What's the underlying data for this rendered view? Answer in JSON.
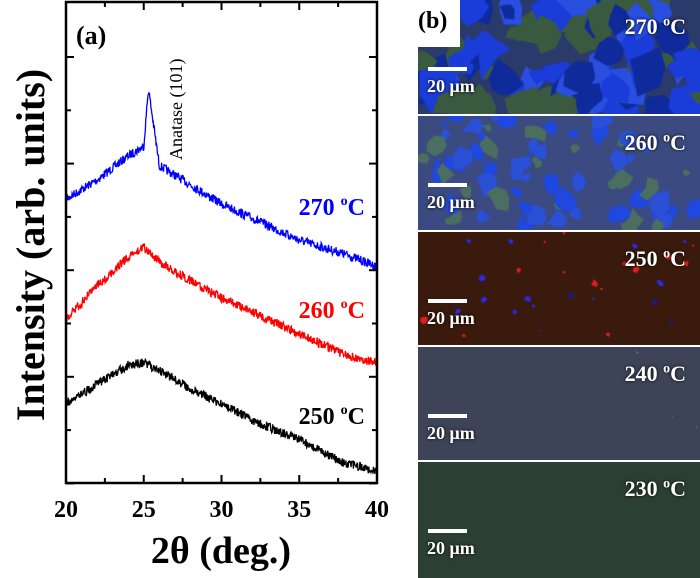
{
  "chart_data": {
    "type": "line",
    "panel_label": "(a)",
    "xlabel": "2θ (deg.)",
    "ylabel": "Intensity (arb. units)",
    "xlim": [
      20,
      40
    ],
    "xticks": [
      "20",
      "25",
      "30",
      "35",
      "40"
    ],
    "ylim": [
      0,
      10
    ],
    "annotation": "Anatase (101)",
    "grid": false,
    "series": [
      {
        "name": "270 °C",
        "label_main": "270 ",
        "label_sup": "o",
        "label_unit": "C",
        "color": "#0000ff",
        "x": [
          20,
          22,
          24,
          25,
          25.3,
          26,
          28,
          30,
          32,
          35,
          38,
          40
        ],
        "y": [
          5.9,
          6.3,
          6.8,
          7.0,
          8.2,
          6.6,
          6.2,
          5.8,
          5.5,
          5.05,
          4.75,
          4.5
        ]
      },
      {
        "name": "260 °C",
        "label_main": "260 ",
        "label_sup": "o",
        "label_unit": "C",
        "color": "#ff0000",
        "x": [
          20,
          22,
          24,
          25,
          26,
          28,
          30,
          32,
          35,
          38,
          40
        ],
        "y": [
          3.4,
          4.1,
          4.7,
          4.9,
          4.6,
          4.2,
          3.85,
          3.55,
          3.1,
          2.65,
          2.5
        ]
      },
      {
        "name": "250 °C",
        "label_main": "250 ",
        "label_sup": "o",
        "label_unit": "C",
        "color": "#000000",
        "x": [
          20,
          22,
          24,
          25,
          26,
          28,
          30,
          32,
          35,
          38,
          40
        ],
        "y": [
          1.65,
          2.05,
          2.45,
          2.5,
          2.35,
          1.95,
          1.65,
          1.3,
          0.9,
          0.4,
          0.25
        ]
      }
    ]
  },
  "micrographs": {
    "panel_label": "(b)",
    "scale_text": "20 μm",
    "panels": [
      {
        "temp": "270 ",
        "sup": "o",
        "unit": "C",
        "base": "#2a3a6a"
      },
      {
        "temp": "260 ",
        "sup": "o",
        "unit": "C",
        "base": "#3b4a80"
      },
      {
        "temp": "250 ",
        "sup": "o",
        "unit": "C",
        "base": "#3a1a0c"
      },
      {
        "temp": "240 ",
        "sup": "o",
        "unit": "C",
        "base": "#3e4458"
      },
      {
        "temp": "230 ",
        "sup": "o",
        "unit": "C",
        "base": "#2c3f33"
      }
    ]
  }
}
